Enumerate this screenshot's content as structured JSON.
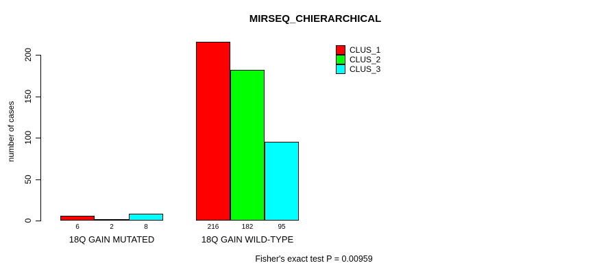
{
  "chart_data": {
    "type": "bar",
    "title": "MIRSEQ_CHIERARCHICAL",
    "ylabel": "number of cases",
    "xlabel": "",
    "categories": [
      "18Q GAIN MUTATED",
      "18Q GAIN WILD-TYPE"
    ],
    "series": [
      {
        "name": "CLUS_1",
        "color": "#FF0000",
        "values": [
          6,
          216
        ]
      },
      {
        "name": "CLUS_2",
        "color": "#00FF00",
        "values": [
          2,
          182
        ]
      },
      {
        "name": "CLUS_3",
        "color": "#00FFFF",
        "values": [
          8,
          95
        ]
      }
    ],
    "bar_value_labels": [
      [
        "6",
        "2",
        "8"
      ],
      [
        "216",
        "182",
        "95"
      ]
    ],
    "yticks": [
      "0",
      "50",
      "100",
      "150",
      "200"
    ],
    "ytick_values": [
      0,
      50,
      100,
      150,
      200
    ],
    "ylim": [
      0,
      200
    ],
    "grid": false,
    "legend_position": "top-right",
    "bar_border_color": "#000000",
    "background_color": "#FFFFFF",
    "annotation": "Fisher's exact test P = 0.00959"
  }
}
